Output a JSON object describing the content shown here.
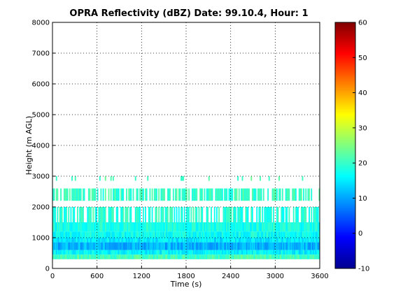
{
  "chart_data": {
    "type": "heatmap",
    "title": "OPRA Reflectivity (dBZ)  Date: 99.10.4, Hour: 1",
    "xlabel": "Time (s)",
    "ylabel": "Height (m AGL)",
    "xlim": [
      0,
      3600
    ],
    "ylim": [
      0,
      8000
    ],
    "x_ticks": [
      "0",
      "600",
      "1200",
      "1800",
      "2400",
      "3000",
      "3600"
    ],
    "y_ticks": [
      "0",
      "1000",
      "2000",
      "3000",
      "4000",
      "5000",
      "6000",
      "7000",
      "8000"
    ],
    "grid": true,
    "colorbar": {
      "min": -10,
      "max": 60,
      "ticks": [
        "-10",
        "0",
        "10",
        "20",
        "30",
        "40",
        "50",
        "60"
      ]
    },
    "height_bands": [
      {
        "h0": 300,
        "h1": 450,
        "dbz": 21
      },
      {
        "h0": 450,
        "h1": 600,
        "dbz": 16
      },
      {
        "h0": 600,
        "h1": 850,
        "dbz": 11
      },
      {
        "h0": 850,
        "h1": 1000,
        "dbz": 15
      },
      {
        "h0": 1000,
        "h1": 1200,
        "dbz": 17
      },
      {
        "h0": 1200,
        "h1": 1500,
        "dbz": 18
      },
      {
        "h0": 1500,
        "h1": 2000,
        "dbz": 19
      },
      {
        "h0": 2200,
        "h1": 2600,
        "dbz": 20
      },
      {
        "h0": 2850,
        "h1": 3000,
        "dbz": 21
      }
    ]
  }
}
